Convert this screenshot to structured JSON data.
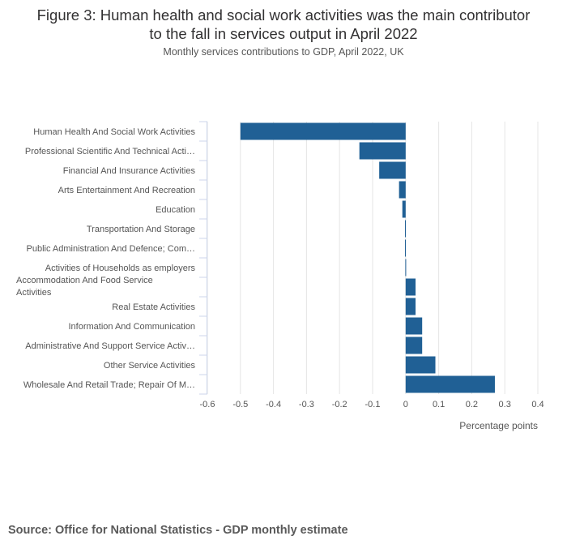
{
  "title_line1": "Figure 3: Human health and social work activities was the main contributor",
  "title_line2": "to the fall in services output in April 2022",
  "subtitle": "Monthly services contributions to GDP, April 2022, UK",
  "source": "Source: Office for National Statistics - GDP monthly estimate",
  "colors": {
    "bar": "#206095",
    "grid": "#e5e5e5",
    "axis": "#ccd6eb",
    "text": "#555555"
  },
  "chart_data": {
    "type": "bar",
    "orientation": "horizontal",
    "categories": [
      "Human Health And Social Work Activities",
      "Professional Scientific And Technical Acti…",
      "Financial And Insurance Activities",
      "Arts Entertainment And Recreation",
      "Education",
      "Transportation And Storage",
      "Public Administration And Defence; Com…",
      "Activities of Households as employers",
      "Accommodation And Food Service Activities",
      "Real Estate Activities",
      "Information And Communication",
      "Administrative And Support Service Activ…",
      "Other Service Activities",
      "Wholesale And Retail Trade; Repair Of M…"
    ],
    "values": [
      -0.5,
      -0.14,
      -0.08,
      -0.02,
      -0.01,
      -0.002,
      -0.002,
      -0.001,
      0.03,
      0.03,
      0.05,
      0.05,
      0.09,
      0.27
    ],
    "xlabel": "Percentage points",
    "ylabel": "",
    "xlim": [
      -0.6,
      0.4
    ],
    "xticks": [
      "-0.6",
      "-0.5",
      "-0.4",
      "-0.3",
      "-0.2",
      "-0.1",
      "0",
      "0.1",
      "0.2",
      "0.3",
      "0.4"
    ],
    "grid": true,
    "legend": "none"
  }
}
